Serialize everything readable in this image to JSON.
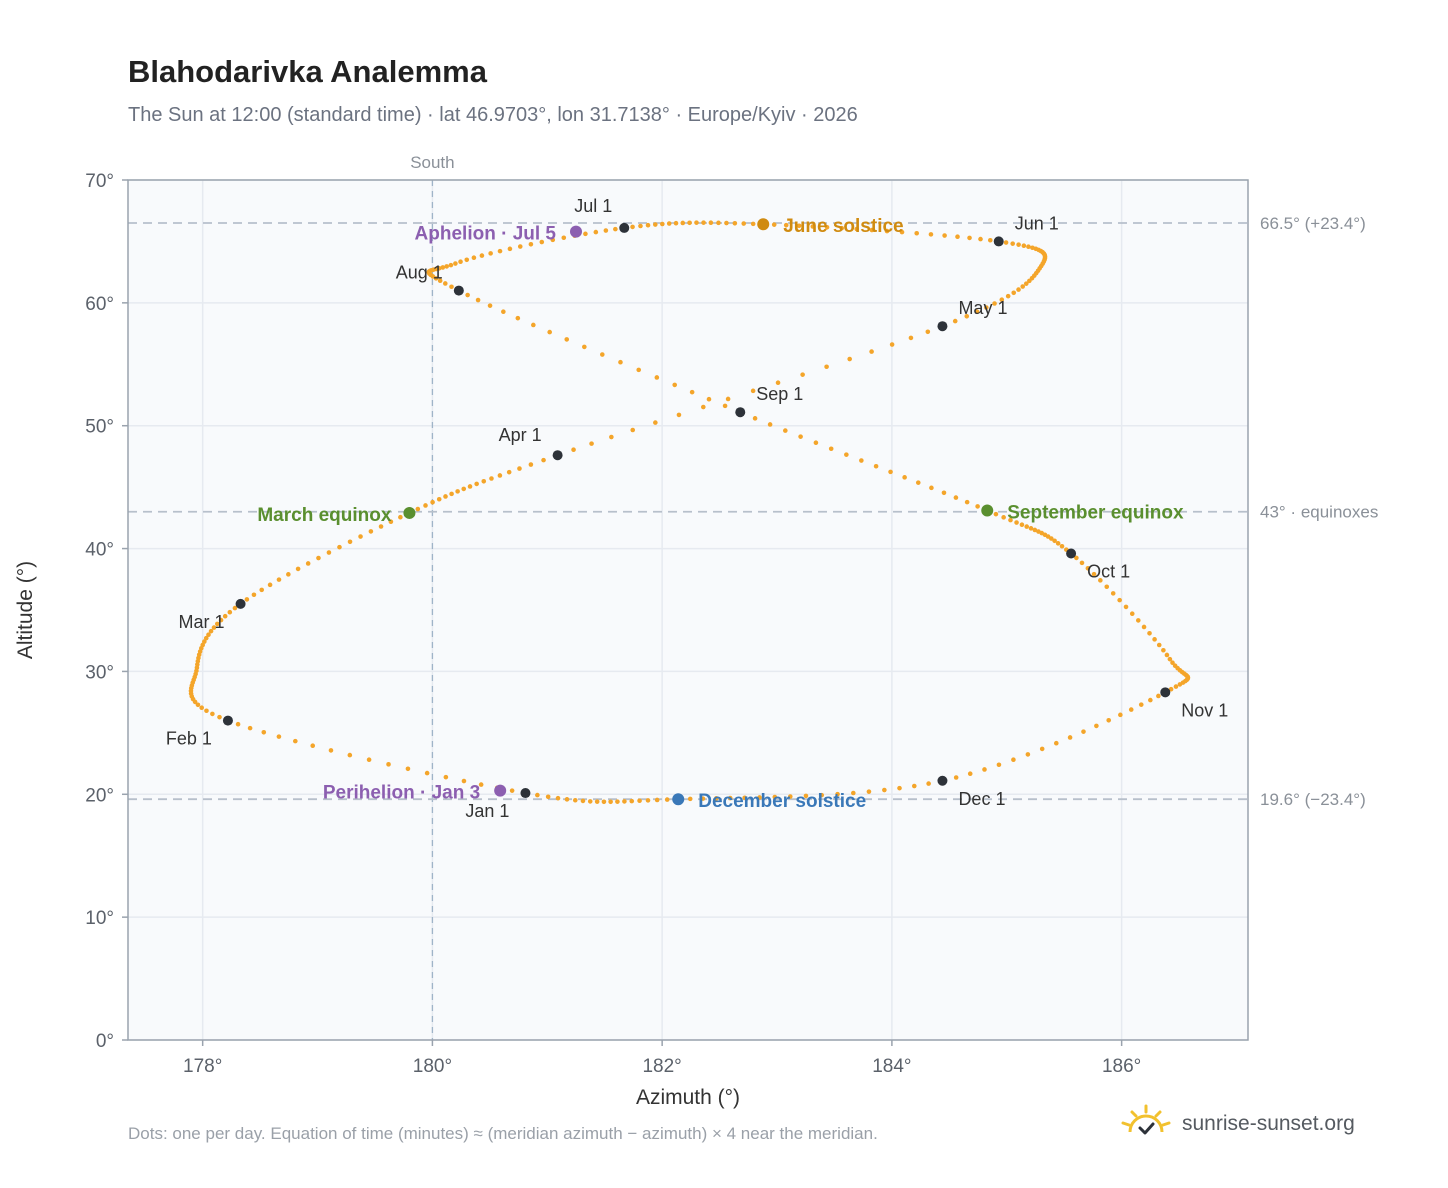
{
  "header": {
    "title": "Blahodarivka Analemma",
    "subtitle": "The Sun at 12:00 (standard time) · lat 46.9703°, lon 31.7138° · Europe/Kyiv · 2026"
  },
  "footer": {
    "note": "Dots: one per day. Equation of time (minutes) ≈ (meridian azimuth − azimuth) × 4 near the meridian.",
    "brand": "sunrise-sunset.org"
  },
  "colors": {
    "curve": "#f4a52a",
    "month_marker": "#2d3239",
    "equinox": "#5a8f2f",
    "june_solstice": "#d08b10",
    "december_solstice": "#3a78b8",
    "perihelion_aphelion": "#8c5fb0",
    "grid": "#e6eaf0",
    "plot_bg": "#f8fafc",
    "reference_line": "#b7c0cb",
    "brand_icon": "#f2c12e"
  },
  "chart_data": {
    "type": "scatter",
    "title": "Blahodarivka Analemma",
    "xlabel": "Azimuth (°)",
    "ylabel": "Altitude (°)",
    "xlim": [
      177.35,
      187.1
    ],
    "ylim": [
      0,
      70
    ],
    "x_ticks": [
      178,
      180,
      182,
      184,
      186
    ],
    "x_tick_labels": [
      "178°",
      "180°",
      "182°",
      "184°",
      "186°"
    ],
    "y_ticks": [
      0,
      10,
      20,
      30,
      40,
      50,
      60,
      70
    ],
    "y_tick_labels": [
      "0°",
      "10°",
      "20°",
      "30°",
      "40°",
      "50°",
      "60°",
      "70°"
    ],
    "grid": true,
    "meridian": {
      "azimuth": 180,
      "label": "South"
    },
    "reference_lines": [
      {
        "altitude": 66.5,
        "label": "66.5° (+23.4°)"
      },
      {
        "altitude": 43,
        "label": "43° · equinoxes"
      },
      {
        "altitude": 19.6,
        "label": "19.6° (−23.4°)"
      }
    ],
    "month_markers": [
      {
        "label": "Jan 1",
        "azimuth": 180.81,
        "altitude": 20.1
      },
      {
        "label": "Feb 1",
        "azimuth": 178.22,
        "altitude": 26.0
      },
      {
        "label": "Mar 1",
        "azimuth": 178.33,
        "altitude": 35.5
      },
      {
        "label": "Apr 1",
        "azimuth": 181.09,
        "altitude": 47.6
      },
      {
        "label": "May 1",
        "azimuth": 184.44,
        "altitude": 58.1
      },
      {
        "label": "Jun 1",
        "azimuth": 184.93,
        "altitude": 65.0
      },
      {
        "label": "Jul 1",
        "azimuth": 181.67,
        "altitude": 66.1
      },
      {
        "label": "Aug 1",
        "azimuth": 180.23,
        "altitude": 61.0
      },
      {
        "label": "Sep 1",
        "azimuth": 182.68,
        "altitude": 51.1
      },
      {
        "label": "Oct 1",
        "azimuth": 185.56,
        "altitude": 39.6
      },
      {
        "label": "Nov 1",
        "azimuth": 186.38,
        "altitude": 28.3
      },
      {
        "label": "Dec 1",
        "azimuth": 184.44,
        "altitude": 21.1
      }
    ],
    "events": [
      {
        "label": "March equinox",
        "azimuth": 179.8,
        "altitude": 42.9,
        "kind": "equinox"
      },
      {
        "label": "June solstice",
        "azimuth": 182.88,
        "altitude": 66.4,
        "kind": "june_solstice"
      },
      {
        "label": "September equinox",
        "azimuth": 184.83,
        "altitude": 43.1,
        "kind": "equinox"
      },
      {
        "label": "December solstice",
        "azimuth": 182.14,
        "altitude": 19.6,
        "kind": "december_solstice"
      },
      {
        "label": "Perihelion · Jan 3",
        "azimuth": 180.59,
        "altitude": 20.3,
        "kind": "perihelion_aphelion"
      },
      {
        "label": "Aphelion · Jul 5",
        "azimuth": 181.25,
        "altitude": 65.8,
        "kind": "perihelion_aphelion"
      }
    ],
    "series": [
      {
        "points": [
          [
            180.81,
            20.1
          ],
          [
            178.22,
            26.0
          ],
          [
            177.95,
            30.3
          ],
          [
            178.33,
            35.5
          ],
          [
            179.8,
            42.9
          ],
          [
            181.09,
            47.6
          ],
          [
            184.44,
            58.1
          ],
          [
            185.3,
            63.0
          ],
          [
            184.93,
            65.0
          ],
          [
            182.88,
            66.4
          ],
          [
            181.67,
            66.1
          ],
          [
            180.2,
            63.2
          ],
          [
            180.23,
            61.0
          ],
          [
            182.68,
            51.1
          ],
          [
            184.83,
            43.1
          ],
          [
            185.56,
            39.6
          ],
          [
            186.42,
            31.0
          ],
          [
            186.38,
            28.3
          ],
          [
            184.44,
            21.1
          ],
          [
            182.14,
            19.6
          ],
          [
            180.81,
            20.1
          ]
        ]
      }
    ]
  }
}
